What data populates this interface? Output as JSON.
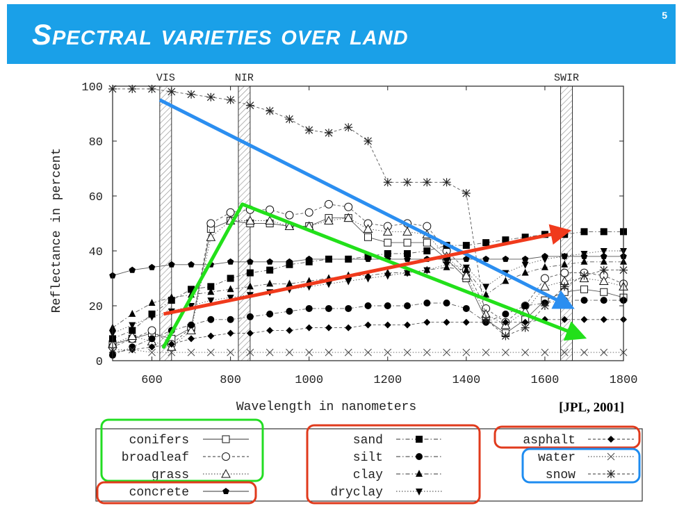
{
  "slide": {
    "title": "Spectral varieties over land",
    "number": "5",
    "citation": "[JPL, 2001]"
  },
  "colors": {
    "banner": "#1aa0e8",
    "blue_arrow": "#2b8ef0",
    "green_arrow": "#22e01a",
    "red_arrow": "#f03a1c",
    "box_green": "#22dd22",
    "box_red": "#e03a1c",
    "box_blue": "#1e8cf0"
  },
  "chart_data": {
    "type": "line",
    "xlabel": "Wavelength in nanometers",
    "ylabel": "Reflectance in percent",
    "xlim": [
      500,
      1800
    ],
    "ylim": [
      0,
      100
    ],
    "xticks": [
      600,
      800,
      1000,
      1200,
      1400,
      1600,
      1800
    ],
    "yticks": [
      0,
      20,
      40,
      60,
      80,
      100
    ],
    "bands": [
      {
        "label": "VIS",
        "x": [
          620,
          650
        ]
      },
      {
        "label": "NIR",
        "x": [
          820,
          850
        ]
      },
      {
        "label": "SWIR",
        "x": [
          1640,
          1670
        ]
      }
    ],
    "series": [
      {
        "name": "conifers",
        "marker": "square-open",
        "dash": "solid",
        "x": [
          500,
          550,
          600,
          650,
          700,
          750,
          800,
          850,
          900,
          950,
          1000,
          1050,
          1100,
          1150,
          1200,
          1250,
          1300,
          1350,
          1400,
          1450,
          1500,
          1550,
          1600,
          1650,
          1700,
          1750,
          1800
        ],
        "y": [
          6,
          8,
          10,
          8,
          12,
          48,
          51,
          50,
          50,
          49,
          49,
          52,
          52,
          45,
          43,
          43,
          43,
          37,
          30,
          15,
          10,
          15,
          22,
          25,
          26,
          25,
          23
        ]
      },
      {
        "name": "broadleaf",
        "marker": "circle-open",
        "dash": "dashed",
        "x": [
          500,
          550,
          600,
          650,
          700,
          750,
          800,
          850,
          900,
          950,
          1000,
          1050,
          1100,
          1150,
          1200,
          1250,
          1300,
          1350,
          1400,
          1450,
          1500,
          1550,
          1600,
          1650,
          1700,
          1750,
          1800
        ],
        "y": [
          5,
          8,
          11,
          6,
          12,
          50,
          54,
          55,
          55,
          53,
          54,
          57,
          56,
          50,
          49,
          50,
          49,
          40,
          33,
          19,
          14,
          20,
          30,
          32,
          32,
          31,
          28
        ]
      },
      {
        "name": "grass",
        "marker": "triangle-open",
        "dash": "dotted",
        "x": [
          500,
          550,
          600,
          650,
          700,
          750,
          800,
          850,
          900,
          950,
          1000,
          1050,
          1100,
          1150,
          1200,
          1250,
          1300,
          1350,
          1400,
          1450,
          1500,
          1550,
          1600,
          1650,
          1700,
          1750,
          1800
        ],
        "y": [
          6,
          9,
          7,
          5,
          11,
          45,
          51,
          51,
          51,
          49,
          49,
          51,
          52,
          48,
          47,
          47,
          46,
          38,
          31,
          17,
          13,
          18,
          27,
          29,
          30,
          29,
          27
        ]
      },
      {
        "name": "concrete",
        "marker": "pentagon-filled",
        "dash": "solid",
        "x": [
          500,
          550,
          600,
          650,
          700,
          750,
          800,
          850,
          900,
          950,
          1000,
          1050,
          1100,
          1150,
          1200,
          1250,
          1300,
          1350,
          1400,
          1450,
          1500,
          1550,
          1600,
          1650,
          1700,
          1750,
          1800
        ],
        "y": [
          31,
          33,
          34,
          35,
          35,
          35,
          36,
          36,
          36,
          36,
          37,
          37,
          37,
          37,
          37,
          37,
          37,
          37,
          37,
          37,
          37,
          37,
          38,
          38,
          38,
          38,
          38
        ]
      },
      {
        "name": "sand",
        "marker": "square-filled",
        "dash": "dashdot",
        "x": [
          500,
          550,
          600,
          650,
          700,
          750,
          800,
          850,
          900,
          950,
          1000,
          1050,
          1100,
          1150,
          1200,
          1250,
          1300,
          1350,
          1400,
          1450,
          1500,
          1550,
          1600,
          1650,
          1700,
          1750,
          1800
        ],
        "y": [
          8,
          11,
          17,
          22,
          26,
          27,
          30,
          32,
          33,
          35,
          36,
          37,
          37,
          38,
          39,
          39,
          40,
          42,
          42,
          43,
          44,
          45,
          46,
          46,
          47,
          47,
          47
        ]
      },
      {
        "name": "silt",
        "marker": "circle-filled",
        "dash": "dashdot",
        "x": [
          500,
          550,
          600,
          650,
          700,
          750,
          800,
          850,
          900,
          950,
          1000,
          1050,
          1100,
          1150,
          1200,
          1250,
          1300,
          1350,
          1400,
          1450,
          1500,
          1550,
          1600,
          1650,
          1700,
          1750,
          1800
        ],
        "y": [
          2,
          5,
          8,
          11,
          13,
          15,
          15,
          16,
          17,
          18,
          19,
          19,
          19,
          20,
          20,
          20,
          21,
          21,
          19,
          14,
          17,
          20,
          21,
          22,
          22,
          22,
          22
        ]
      },
      {
        "name": "clay",
        "marker": "triangle-filled",
        "dash": "dashdot",
        "x": [
          500,
          550,
          600,
          650,
          700,
          750,
          800,
          850,
          900,
          950,
          1000,
          1050,
          1100,
          1150,
          1200,
          1250,
          1300,
          1350,
          1400,
          1450,
          1500,
          1550,
          1600,
          1650,
          1700,
          1750,
          1800
        ],
        "y": [
          12,
          17,
          21,
          23,
          24,
          25,
          26,
          27,
          28,
          28,
          29,
          30,
          31,
          31,
          32,
          32,
          33,
          34,
          33,
          24,
          29,
          32,
          34,
          35,
          36,
          36,
          36
        ]
      },
      {
        "name": "dryclay",
        "marker": "triangle-down-filled",
        "dash": "dotted",
        "x": [
          500,
          550,
          600,
          650,
          700,
          750,
          800,
          850,
          900,
          950,
          1000,
          1050,
          1100,
          1150,
          1200,
          1250,
          1300,
          1350,
          1400,
          1450,
          1500,
          1550,
          1600,
          1650,
          1700,
          1750,
          1800
        ],
        "y": [
          10,
          13,
          16,
          18,
          20,
          22,
          23,
          24,
          25,
          26,
          27,
          28,
          29,
          30,
          31,
          32,
          33,
          35,
          34,
          27,
          32,
          35,
          37,
          38,
          39,
          40,
          40
        ]
      },
      {
        "name": "asphalt",
        "marker": "diamond-filled",
        "dash": "dashed",
        "x": [
          500,
          550,
          600,
          650,
          700,
          750,
          800,
          850,
          900,
          950,
          1000,
          1050,
          1100,
          1150,
          1200,
          1250,
          1300,
          1350,
          1400,
          1450,
          1500,
          1550,
          1600,
          1650,
          1700,
          1750,
          1800
        ],
        "y": [
          3,
          4,
          5,
          6,
          8,
          9,
          10,
          10,
          11,
          11,
          12,
          12,
          12,
          13,
          13,
          13,
          14,
          14,
          14,
          14,
          14,
          14,
          15,
          15,
          15,
          15,
          15
        ]
      },
      {
        "name": "water",
        "marker": "x",
        "dash": "dotted",
        "x": [
          500,
          550,
          600,
          650,
          700,
          750,
          800,
          850,
          900,
          950,
          1000,
          1050,
          1100,
          1150,
          1200,
          1250,
          1300,
          1350,
          1400,
          1450,
          1500,
          1550,
          1600,
          1650,
          1700,
          1750,
          1800
        ],
        "y": [
          4,
          4,
          3,
          3,
          3,
          3,
          3,
          3,
          3,
          3,
          3,
          3,
          3,
          3,
          3,
          3,
          3,
          3,
          3,
          3,
          3,
          3,
          3,
          3,
          3,
          3,
          3
        ]
      },
      {
        "name": "snow",
        "marker": "asterisk",
        "dash": "dashed",
        "x": [
          500,
          550,
          600,
          650,
          700,
          750,
          800,
          850,
          900,
          950,
          1000,
          1050,
          1100,
          1150,
          1200,
          1250,
          1300,
          1350,
          1400,
          1450,
          1500,
          1550,
          1600,
          1650,
          1700,
          1750,
          1800
        ],
        "y": [
          99,
          99,
          99,
          98,
          97,
          96,
          95,
          93,
          91,
          88,
          84,
          83,
          85,
          80,
          65,
          65,
          65,
          65,
          61,
          15,
          9,
          12,
          20,
          27,
          31,
          33,
          33
        ]
      }
    ],
    "arrows": [
      {
        "color": "blue",
        "from": [
          620,
          95
        ],
        "to": [
          1660,
          20
        ]
      },
      {
        "color": "green",
        "from": [
          630,
          5
        ],
        "to": [
          830,
          57
        ],
        "then": [
          1690,
          9
        ]
      },
      {
        "color": "red",
        "from": [
          630,
          17
        ],
        "to": [
          1650,
          47
        ]
      }
    ],
    "legend_groups": [
      {
        "color": "green",
        "items": [
          "conifers",
          "broadleaf",
          "grass"
        ]
      },
      {
        "color": "red",
        "items": [
          "concrete"
        ]
      },
      {
        "color": "red",
        "items": [
          "sand",
          "silt",
          "clay",
          "dryclay"
        ]
      },
      {
        "color": "red",
        "items": [
          "asphalt"
        ]
      },
      {
        "color": "blue",
        "items": [
          "water",
          "snow"
        ]
      }
    ]
  }
}
